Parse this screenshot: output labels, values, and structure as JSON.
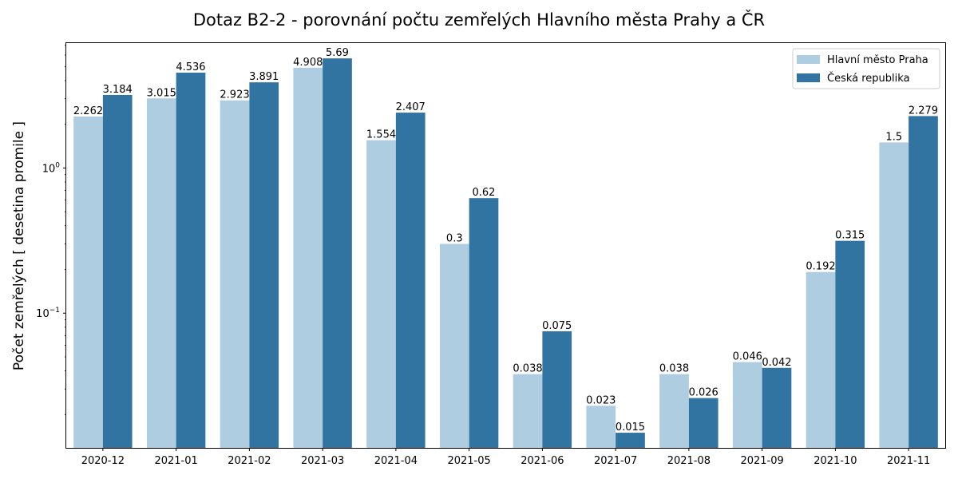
{
  "chart_data": {
    "type": "bar",
    "title": "Dotaz B2-2 - porovnání počtu zemřelých Hlavního města Prahy a ČR",
    "xlabel": "",
    "ylabel": "Počet zemřelých [ desetina promile ]",
    "yscale": "log",
    "ylim": [
      0.0118,
      7.25
    ],
    "y_major_ticks": [
      {
        "value": 0.1,
        "base": "10",
        "exp": "−1"
      },
      {
        "value": 1,
        "base": "10",
        "exp": "0"
      }
    ],
    "grid": false,
    "legend_position": "top-right",
    "categories": [
      "2020-12",
      "2021-01",
      "2021-02",
      "2021-03",
      "2021-04",
      "2021-05",
      "2021-06",
      "2021-07",
      "2021-08",
      "2021-09",
      "2021-10",
      "2021-11"
    ],
    "series": [
      {
        "name": "Hlavní město Praha",
        "color": "#aecde1",
        "values": [
          2.262,
          3.015,
          2.923,
          4.908,
          1.554,
          0.3,
          0.038,
          0.023,
          0.038,
          0.046,
          0.192,
          1.5
        ],
        "labels": [
          "2.262",
          "3.015",
          "2.923",
          "4.908",
          "1.554",
          "0.3",
          "0.038",
          "0.023",
          "0.038",
          "0.046",
          "0.192",
          "1.5"
        ]
      },
      {
        "name": "Česká republika",
        "color": "#3274a1",
        "values": [
          3.184,
          4.536,
          3.891,
          5.69,
          2.407,
          0.62,
          0.075,
          0.015,
          0.026,
          0.042,
          0.315,
          2.279
        ],
        "labels": [
          "3.184",
          "4.536",
          "3.891",
          "5.69",
          "2.407",
          "0.62",
          "0.075",
          "0.015",
          "0.026",
          "0.042",
          "0.315",
          "2.279"
        ]
      }
    ]
  }
}
